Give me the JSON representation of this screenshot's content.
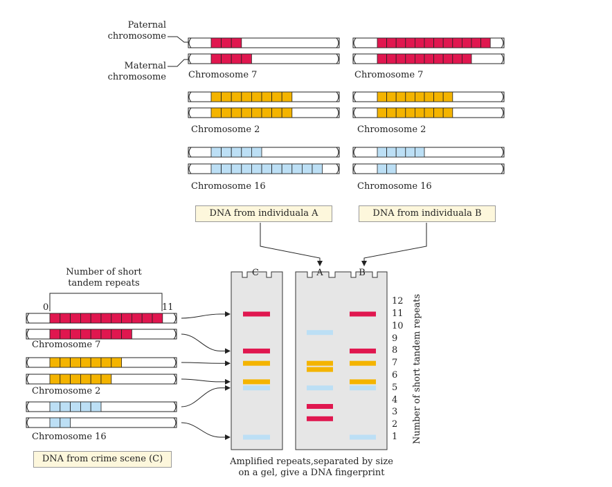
{
  "colors": {
    "red": "#e0174f",
    "yellow": "#f4b400",
    "blue": "#bcdff5",
    "gel": "#e6e6e6",
    "box": "#fdf7dc"
  },
  "labels": {
    "paternal": "Paternal chromosome",
    "paternal_l1": "Paternal",
    "paternal_l2": "chromosome",
    "maternal_l1": "Maternal",
    "maternal_l2": "chromosome",
    "chr7": "Chromosome 7",
    "chr2": "Chromosome 2",
    "chr16": "Chromosome 16",
    "dna_a": "DNA from individuala A",
    "dna_b": "DNA from individuala B",
    "dna_c": "DNA from crime scene (C)",
    "repeats_l1": "Number of short",
    "repeats_l2": "tandem repeats",
    "tick_0": "0",
    "tick_11": "11",
    "lane_c": "C",
    "lane_a": "A",
    "lane_b": "B",
    "axis_title": "Number of short tandem repeats",
    "caption_l1": "Amplified repeats,separated by size",
    "caption_l2": "on a gel, give a DNA fingerprint"
  },
  "scale_numbers": [
    "12",
    "11",
    "10",
    "9",
    "8",
    "7",
    "6",
    "5",
    "4",
    "3",
    "2",
    "1"
  ],
  "individual_A": {
    "chr7": [
      3,
      4
    ],
    "chr2": [
      8,
      8
    ],
    "chr16": [
      5,
      11
    ]
  },
  "individual_B": {
    "chr7": [
      12,
      10
    ],
    "chr2": [
      8,
      8
    ],
    "chr16": [
      5,
      2
    ]
  },
  "crime_scene_C": {
    "chr7": [
      11,
      8
    ],
    "chr2": [
      7,
      6
    ],
    "chr16": [
      5,
      2
    ]
  },
  "gel": {
    "C": [
      {
        "color": "red",
        "repeats": [
          11,
          8
        ]
      },
      {
        "color": "yellow",
        "repeats": [
          7,
          5.5
        ]
      },
      {
        "color": "blue",
        "repeats": [
          5,
          1
        ]
      }
    ],
    "A": [
      {
        "color": "blue",
        "repeats": [
          9.5,
          5
        ]
      },
      {
        "color": "yellow",
        "repeats": [
          7,
          6.5
        ]
      },
      {
        "color": "red",
        "repeats": [
          3.5,
          2.5
        ]
      }
    ],
    "B": [
      {
        "color": "red",
        "repeats": [
          11,
          8
        ]
      },
      {
        "color": "yellow",
        "repeats": [
          7,
          5.5
        ]
      },
      {
        "color": "blue",
        "repeats": [
          5,
          1
        ]
      }
    ]
  }
}
